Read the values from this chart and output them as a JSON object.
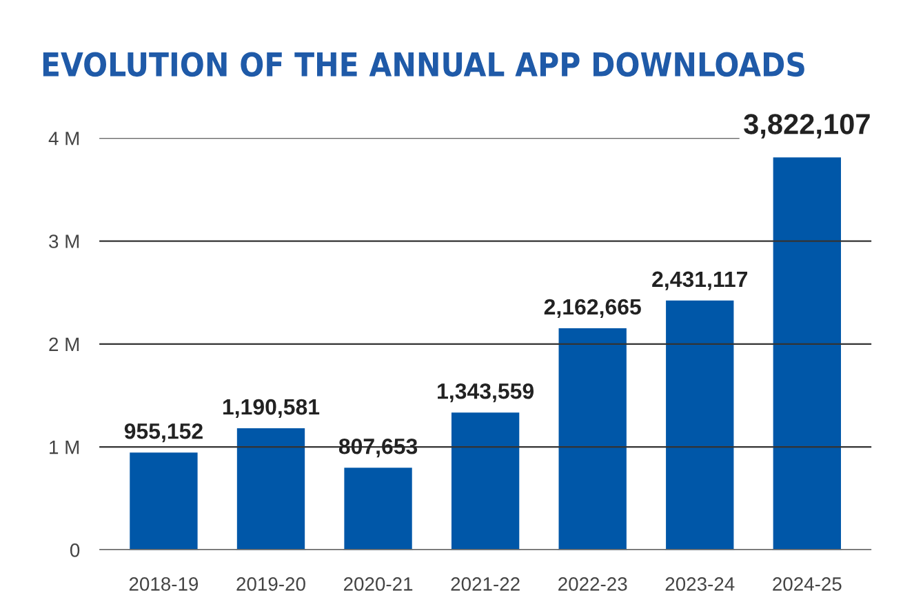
{
  "chart_data": {
    "type": "bar",
    "title": "EVOLUTION OF THE ANNUAL APP DOWNLOADS",
    "categories": [
      "2018-19",
      "2019-20",
      "2020-21",
      "2021-22",
      "2022-23",
      "2023-24",
      "2024-25"
    ],
    "values": [
      955152,
      1190581,
      807653,
      1343559,
      2162665,
      2431117,
      3822107
    ],
    "value_labels": [
      "955,152",
      "1,190,581",
      "807,653",
      "1,343,559",
      "2,162,665",
      "2,431,117",
      "3,822,107"
    ],
    "color": "#0057a8",
    "ylim": [
      0,
      4000000
    ],
    "yticks": [
      {
        "value": 0,
        "label": "0"
      },
      {
        "value": 1000000,
        "label": "1 M"
      },
      {
        "value": 2000000,
        "label": "2 M"
      },
      {
        "value": 3000000,
        "label": "3 M"
      },
      {
        "value": 4000000,
        "label": "4 M"
      }
    ],
    "grid": "y",
    "legend": false
  }
}
